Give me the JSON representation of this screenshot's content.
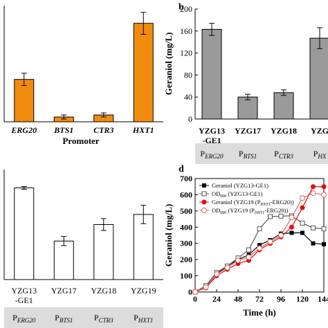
{
  "chart_data": [
    {
      "panel": "",
      "type": "bar",
      "categories": [
        "ERG20",
        "BTS1",
        "CTR3",
        "HXT1"
      ],
      "values": [
        0.31,
        0.035,
        0.05,
        0.72
      ],
      "errors": [
        0.045,
        0.015,
        0.015,
        0.08
      ],
      "ylim": [
        0,
        0.85
      ],
      "xlabel": "Promoter",
      "ylabel": "",
      "bar_color": "#f28c0f"
    },
    {
      "panel": "b",
      "type": "bar",
      "categories": [
        "YZG13\n-GE1",
        "YZG17",
        "YZG18",
        "YZG"
      ],
      "sublabels": [
        "P_ERG20",
        "P_BTS1",
        "P_CTR3",
        "P_HX"
      ],
      "values": [
        163,
        40,
        48,
        147
      ],
      "errors": [
        11,
        5,
        5,
        19
      ],
      "ylim": [
        0,
        200
      ],
      "yticks": [
        0,
        40,
        80,
        120,
        160,
        200
      ],
      "ylabel": "Geraniol (mg/L)",
      "bar_color": "#9a9a9a"
    },
    {
      "panel": "",
      "type": "bar",
      "categories": [
        "YZG13\n-GE1",
        "YZG17",
        "YZG18",
        "YZG19"
      ],
      "sublabels": [
        "P_ERG20",
        "P_BTS1",
        "P_CTR3",
        "P_HXT1"
      ],
      "values": [
        1.0,
        0.42,
        0.6,
        0.71
      ],
      "errors": [
        0.015,
        0.05,
        0.065,
        0.1
      ],
      "ylim": [
        0,
        1.2
      ],
      "bar_color": "#ffffff"
    },
    {
      "panel": "d",
      "type": "line",
      "xlabel": "Time (h)",
      "ylabel": "Geraniol (mg/L)",
      "xlim": [
        0,
        144
      ],
      "ylim": [
        0,
        700
      ],
      "xticks": [
        0,
        24,
        48,
        72,
        96,
        120,
        144
      ],
      "yticks": [
        0,
        100,
        200,
        300,
        400,
        500,
        600,
        700
      ],
      "series": [
        {
          "name": "Geraniol (YZG13-GE1)",
          "color": "#000000",
          "marker": "square-filled",
          "x": [
            0,
            12,
            24,
            36,
            48,
            60,
            72,
            84,
            96,
            108,
            120,
            132,
            144
          ],
          "y": [
            0,
            30,
            110,
            160,
            200,
            230,
            290,
            320,
            360,
            365,
            365,
            300,
            295
          ]
        },
        {
          "name": "OD600 (YZG13-GE1)",
          "color": "#555555",
          "marker": "square-open",
          "x": [
            0,
            12,
            24,
            36,
            48,
            60,
            72,
            84,
            96,
            108,
            120,
            132,
            144
          ],
          "y": [
            0,
            40,
            120,
            160,
            210,
            260,
            390,
            465,
            468,
            470,
            425,
            395,
            390
          ]
        },
        {
          "name": "Geraniol (YZG19 (PHXT1-ERG20))",
          "color": "#e01010",
          "marker": "circle-filled",
          "x": [
            0,
            12,
            24,
            36,
            48,
            60,
            72,
            84,
            96,
            108,
            120,
            132,
            144
          ],
          "y": [
            0,
            25,
            100,
            140,
            175,
            195,
            260,
            300,
            340,
            400,
            520,
            650,
            650
          ]
        },
        {
          "name": "OD600 (YZG19 (PHXT1-ERG20))",
          "color": "#e06060",
          "marker": "circle-open",
          "x": [
            0,
            12,
            24,
            36,
            48,
            60,
            72,
            84,
            96,
            108,
            120,
            132,
            144
          ],
          "y": [
            0,
            30,
            110,
            150,
            195,
            215,
            270,
            310,
            350,
            460,
            580,
            610,
            600
          ]
        }
      ]
    }
  ],
  "legend_labels": {
    "s1": "Geraniol (YZG13-GE1)",
    "s2_a": "OD",
    "s2_sub": "600",
    "s2_b": " (YZG13-GE1)",
    "s3_a": "Geraniol (YZG19 (P",
    "s3_sub": "HXT1",
    "s3_b": "-ERG20))",
    "s4_a": "OD",
    "s4_sub": "600",
    "s4_b": " (YZG19 (P",
    "s4_sub2": "HXT1",
    "s4_c": "-ERG20))"
  }
}
